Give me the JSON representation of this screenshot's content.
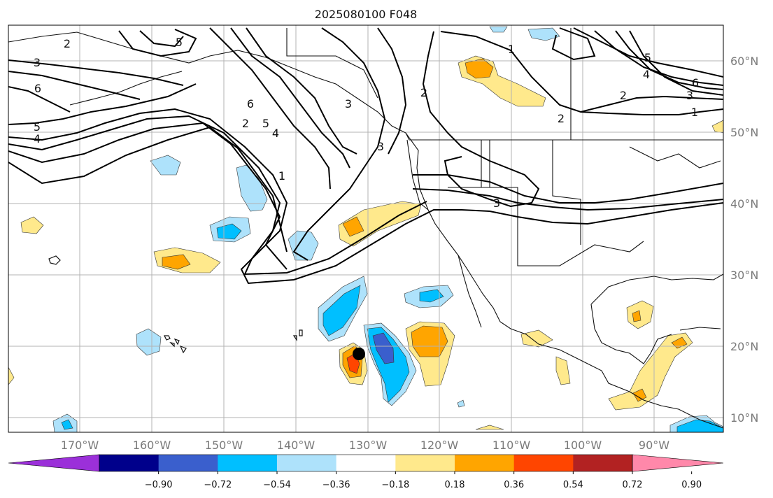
{
  "title": "2025080100 F048",
  "lon_labels": [
    "170°W",
    "160°W",
    "150°W",
    "140°W",
    "130°W",
    "120°W",
    "110°W",
    "100°W",
    "90°W"
  ],
  "lat_labels": [
    "60°N",
    "50°N",
    "40°N",
    "30°N",
    "20°N",
    "10°N"
  ],
  "colorbar": {
    "colors": [
      "#9b30d9",
      "#00008b",
      "#3a5fcd",
      "#00bfff",
      "#aee2fb",
      "#ffffff",
      "#ffe98c",
      "#ffa500",
      "#ff4500",
      "#b22222",
      "#ff88aa"
    ],
    "tick_labels": [
      "−0.90",
      "−0.72",
      "−0.54",
      "−0.36",
      "−0.18",
      "0.18",
      "0.36",
      "0.54",
      "0.72",
      "0.90"
    ]
  },
  "contour_labels": [
    "3",
    "6",
    "5",
    "4",
    "2",
    "5",
    "6",
    "5",
    "4",
    "1",
    "3",
    "2",
    "3",
    "1",
    "2",
    "5",
    "4",
    "3",
    "6",
    "2",
    "3",
    "1",
    "2"
  ],
  "marker": "black dot"
}
